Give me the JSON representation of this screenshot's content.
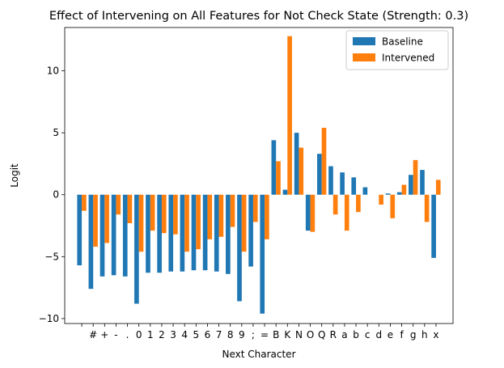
{
  "chart_data": {
    "type": "bar",
    "title": "Effect of Intervening on All Features for Not Check State (Strength: 0.3)",
    "xlabel": "Next Character",
    "ylabel": "Logit",
    "ylim": [
      -10.4,
      13.5
    ],
    "yticks": [
      -10,
      -5,
      0,
      5,
      10
    ],
    "categories": [
      " ",
      "#",
      "+",
      "-",
      ".",
      "0",
      "1",
      "2",
      "3",
      "4",
      "5",
      "6",
      "7",
      "8",
      "9",
      ";",
      "=",
      "B",
      "K",
      "N",
      "O",
      "Q",
      "R",
      "a",
      "b",
      "c",
      "d",
      "e",
      "f",
      "g",
      "h",
      "x"
    ],
    "series": [
      {
        "name": "Baseline",
        "color": "#1f77b4",
        "values": [
          -5.7,
          -7.6,
          -6.6,
          -6.5,
          -6.6,
          -8.8,
          -6.3,
          -6.3,
          -6.2,
          -6.2,
          -6.1,
          -6.1,
          -6.2,
          -6.4,
          -8.6,
          -5.8,
          -9.6,
          4.4,
          0.4,
          5.0,
          -2.9,
          3.3,
          2.3,
          1.8,
          1.4,
          0.6,
          0.0,
          0.1,
          0.2,
          1.6,
          2.0,
          -5.1
        ]
      },
      {
        "name": "Intervened",
        "color": "#ff7f0e",
        "values": [
          -1.3,
          -4.2,
          -3.9,
          -1.6,
          -2.3,
          -4.6,
          -2.9,
          -3.1,
          -3.2,
          -4.6,
          -4.4,
          -3.6,
          -3.4,
          -2.6,
          -4.6,
          -2.2,
          -3.6,
          2.7,
          12.8,
          3.8,
          -3.0,
          5.4,
          -1.6,
          -2.9,
          -1.4,
          0.0,
          -0.8,
          -1.9,
          0.8,
          2.8,
          -2.2,
          1.2
        ]
      }
    ],
    "legend_position": "top-right",
    "grid": false
  }
}
